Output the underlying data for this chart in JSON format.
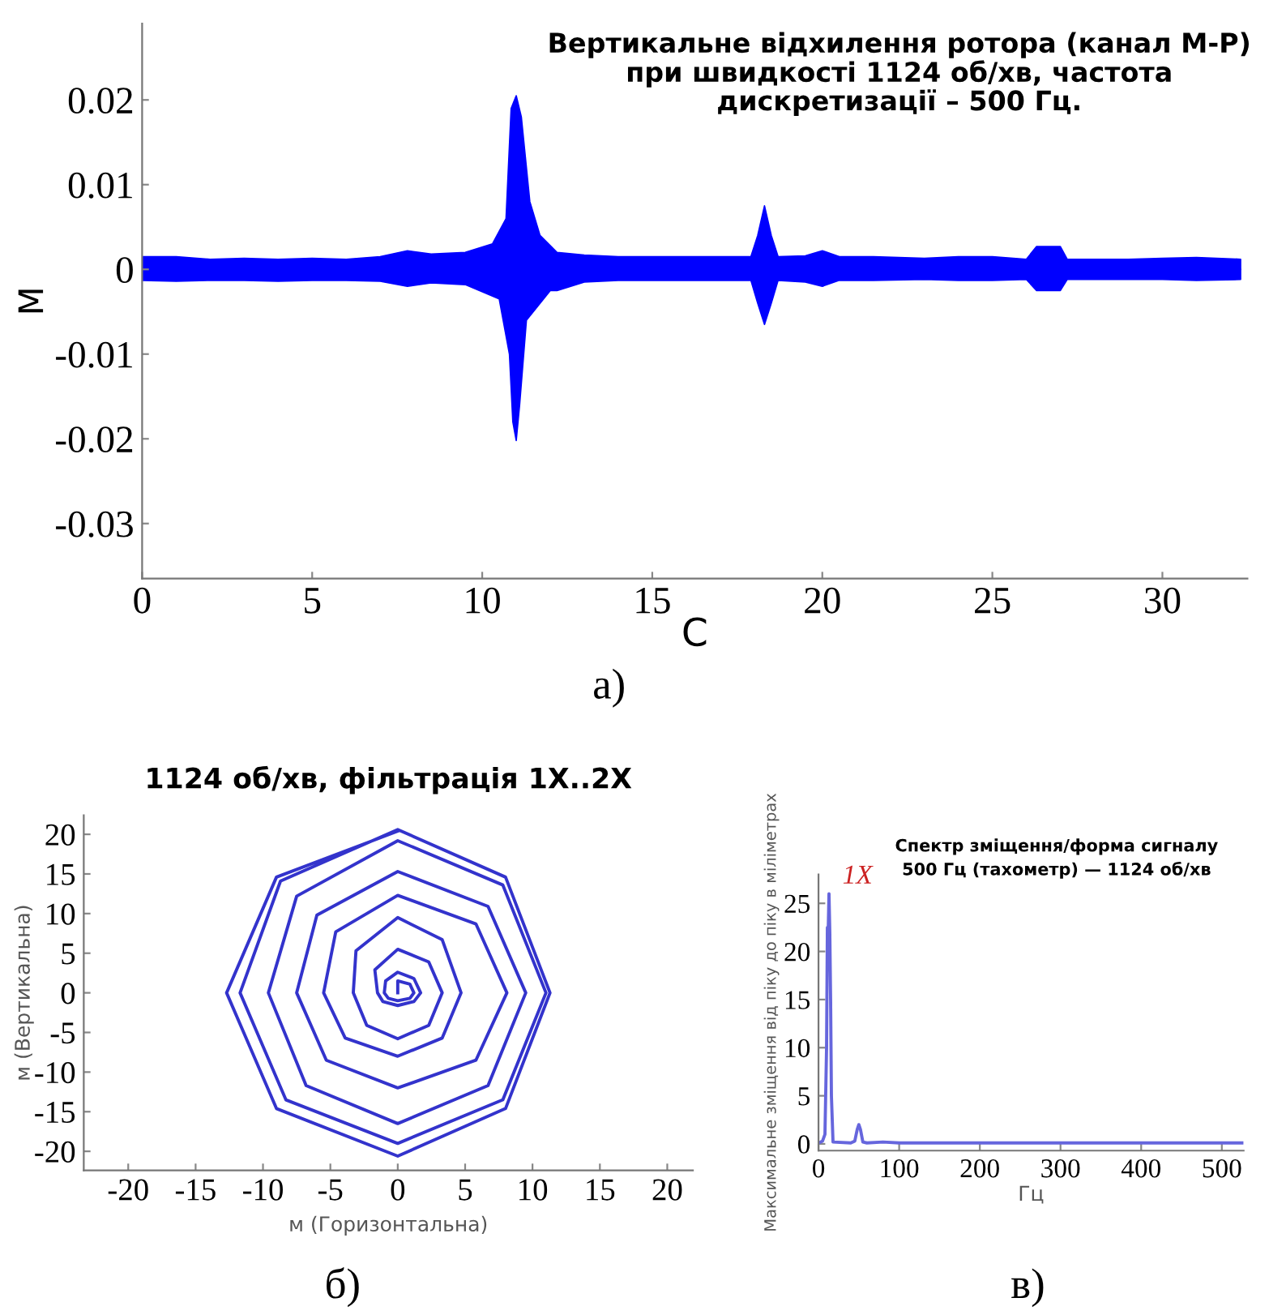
{
  "chart_data": [
    {
      "type": "area",
      "title": "Вертикальне відхилення ротора (канал М-Р)\nпри швидкості 1124 об/хв, частота\nдискретизації – 500 Гц.",
      "xlabel": "С",
      "ylabel": "М",
      "xlim": [
        0,
        32.5
      ],
      "xticks": [
        0,
        5,
        10,
        15,
        20,
        25,
        30
      ],
      "ylim": [
        -0.0365,
        0.029
      ],
      "yticks": [
        -0.03,
        -0.02,
        -0.01,
        0,
        0.01,
        0.02
      ],
      "series": [
        {
          "color": "#0000ff",
          "x": [
            0,
            1,
            2,
            3,
            4,
            5,
            6,
            7,
            7.8,
            8.5,
            9.5,
            10.3,
            10.7,
            10.85,
            11.0,
            11.15,
            11.4,
            11.7,
            12.2,
            13,
            14,
            15,
            16,
            17,
            17.9,
            18.1,
            18.3,
            18.5,
            18.7,
            19.5,
            20,
            20.5,
            21.5,
            23,
            24,
            25,
            26,
            26.3,
            27,
            27.2,
            28,
            29,
            30,
            31,
            32.3
          ],
          "values": [
            0.0015,
            0.0015,
            0.0012,
            0.0013,
            0.0012,
            0.0013,
            0.0012,
            0.0015,
            0.0022,
            0.0018,
            0.002,
            0.003,
            0.006,
            0.019,
            0.0205,
            0.018,
            0.008,
            0.004,
            0.002,
            0.0017,
            0.0015,
            0.0015,
            0.0015,
            0.0015,
            0.0015,
            0.004,
            0.0075,
            0.004,
            0.0015,
            0.0016,
            0.0022,
            0.0015,
            0.0015,
            0.0013,
            0.0015,
            0.0015,
            0.0012,
            0.0027,
            0.0027,
            0.0012,
            0.0012,
            0.0012,
            0.0013,
            0.0014,
            0.0012
          ]
        },
        {
          "color": "#0000ff",
          "x": [
            0,
            1,
            2,
            3,
            4,
            5,
            6,
            7,
            7.8,
            8.5,
            9.5,
            10.5,
            10.8,
            10.9,
            11.0,
            11.1,
            11.3,
            12.0,
            12.2,
            13,
            14,
            15,
            16,
            17,
            17.9,
            18.1,
            18.3,
            18.5,
            18.7,
            19.5,
            20,
            20.5,
            21.5,
            23,
            24,
            25,
            26,
            26.3,
            27,
            27.2,
            28,
            29,
            30,
            31,
            32.3
          ],
          "values": [
            -0.0013,
            -0.0014,
            -0.0013,
            -0.0013,
            -0.0014,
            -0.0013,
            -0.0013,
            -0.0014,
            -0.002,
            -0.0016,
            -0.0018,
            -0.0035,
            -0.01,
            -0.018,
            -0.0202,
            -0.016,
            -0.006,
            -0.0025,
            -0.0025,
            -0.0015,
            -0.0013,
            -0.0013,
            -0.0013,
            -0.0013,
            -0.0013,
            -0.004,
            -0.0065,
            -0.004,
            -0.0013,
            -0.0015,
            -0.002,
            -0.0013,
            -0.0013,
            -0.0012,
            -0.0013,
            -0.0013,
            -0.0012,
            -0.0025,
            -0.0025,
            -0.0012,
            -0.0012,
            -0.0012,
            -0.0012,
            -0.0013,
            -0.0012
          ]
        }
      ],
      "annotations": [
        "а)"
      ]
    },
    {
      "type": "line",
      "title": "1124 об/хв, фільтрація 1X..2X",
      "xlabel": "м (Горизонтальна)",
      "ylabel": "м (Вертикальна)",
      "xlim": [
        -23.3,
        21.9
      ],
      "xticks": [
        -20,
        -15,
        -10,
        -5,
        0,
        5,
        10,
        15,
        20
      ],
      "ylim": [
        -22.4,
        22.4
      ],
      "yticks": [
        -20,
        -15,
        -10,
        -5,
        0,
        5,
        10,
        15,
        20
      ],
      "series": [
        {
          "color": "#3333cc",
          "x": [
            0,
            0,
            0.9,
            1.2,
            0.9,
            0,
            -0.7,
            -1,
            -0.9,
            0,
            1.2,
            1.7,
            1.2,
            0,
            -1.1,
            -1.5,
            -1.7,
            0,
            2.3,
            3.3,
            2.3,
            0,
            -2.3,
            -3.3,
            -3.1,
            0,
            3.3,
            4.7,
            3.3,
            0,
            -3.9,
            -5.5,
            -4.6,
            0,
            5.8,
            8.1,
            5.8,
            0,
            -5.3,
            -7.5,
            -6,
            0,
            6.7,
            9.5,
            6.7,
            0,
            -6.8,
            -9.6,
            -7.5,
            0,
            7.8,
            11,
            7.8,
            0,
            -8.3,
            -11.7,
            -8.7,
            0,
            8,
            11.3,
            8,
            0,
            -9,
            -12.7,
            -9,
            0
          ],
          "values": [
            0,
            1.5,
            1.1,
            0,
            -0.7,
            -1,
            -0.7,
            0,
            1.5,
            2.6,
            1.8,
            0,
            -1.1,
            -1.6,
            -1.1,
            0,
            2.9,
            5.5,
            3.9,
            0,
            -4.1,
            -5.8,
            -4.1,
            0,
            5.3,
            9.5,
            6.7,
            0,
            -5.7,
            -8,
            -5.7,
            0,
            7.7,
            12.3,
            8.7,
            0,
            -8.5,
            -12,
            -8.5,
            0,
            9.8,
            15.3,
            10.9,
            0,
            -11.7,
            -16.5,
            -11.7,
            0,
            12.2,
            19.2,
            13.6,
            0,
            -13.5,
            -19,
            -13.5,
            0,
            14.1,
            20.6,
            14.6,
            0,
            -14.6,
            -20.6,
            -14.6,
            0,
            14.6,
            20.4
          ]
        }
      ],
      "annotations": [
        "б)"
      ]
    },
    {
      "type": "line",
      "title": "Спектр зміщення/форма сигналу\n500 Гц (тахометр) — 1124 об/хв",
      "xlabel": "Гц",
      "ylabel": "Максимальне зміщення від піку до піку в міліметрах",
      "xlim": [
        0,
        527
      ],
      "xticks": [
        0,
        100,
        200,
        300,
        400,
        500
      ],
      "ylim": [
        -0.7,
        28
      ],
      "yticks": [
        0,
        5,
        10,
        15,
        20,
        25
      ],
      "series": [
        {
          "color": "#6666dd",
          "x": [
            0,
            5,
            8,
            10,
            11,
            12,
            12.5,
            13,
            14,
            15,
            16,
            18,
            40,
            45,
            48,
            50,
            52,
            55,
            60,
            80,
            100,
            525
          ],
          "values": [
            0.1,
            0.3,
            1,
            10,
            22.5,
            22,
            24,
            26,
            22,
            15,
            5,
            0.2,
            0.1,
            0.3,
            1.5,
            2,
            1.5,
            0.2,
            0.1,
            0.2,
            0.1,
            0.1
          ]
        }
      ],
      "annotations": [
        {
          "text": "1X",
          "x": 13,
          "y": 26
        },
        "в)"
      ]
    }
  ]
}
